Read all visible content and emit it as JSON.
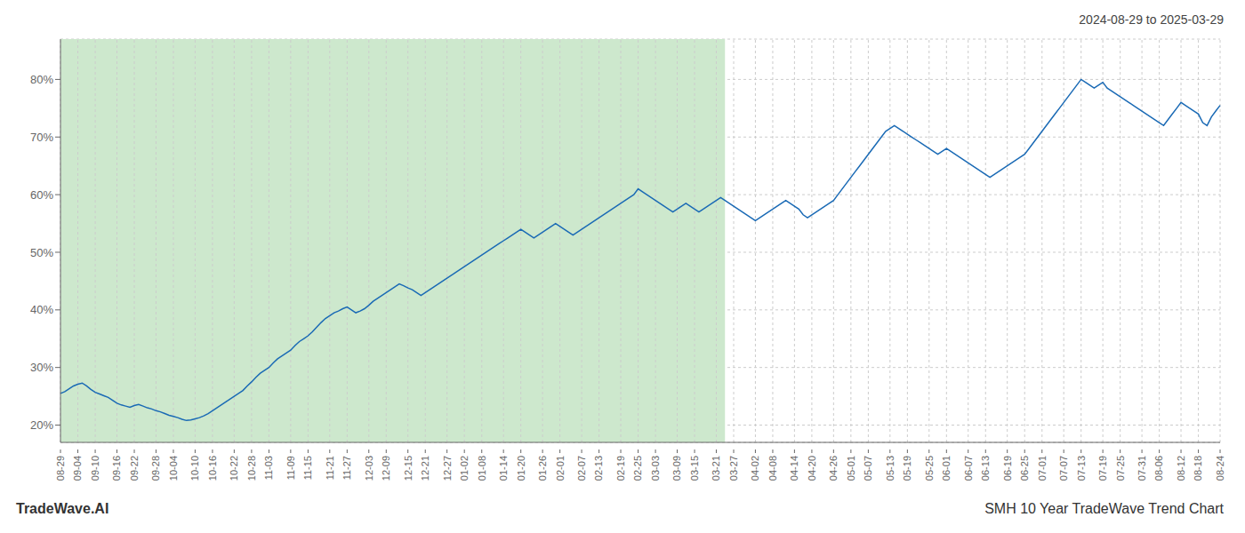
{
  "chart_data": {
    "type": "line",
    "title": "SMH 10 Year TradeWave Trend Chart",
    "subtitle": "2024-08-29 to 2025-03-29",
    "annotations": [
      "TradeWave.AI"
    ],
    "color": "#1a6ab5",
    "grid": true,
    "ylim": [
      17,
      87
    ],
    "yticks": [
      {
        "value": 20,
        "label": "20%"
      },
      {
        "value": 30,
        "label": "30%"
      },
      {
        "value": 40,
        "label": "40%"
      },
      {
        "value": 50,
        "label": "50%"
      },
      {
        "value": 60,
        "label": "60%"
      },
      {
        "value": 70,
        "label": "70%"
      },
      {
        "value": 80,
        "label": "80%"
      }
    ],
    "shaded_range": {
      "start": 0,
      "end": 153,
      "color": "#cde8cd"
    },
    "categories": [
      "08-29",
      null,
      null,
      null,
      "09-04",
      null,
      null,
      null,
      "09-10",
      null,
      null,
      null,
      null,
      "09-16",
      null,
      null,
      null,
      "09-22",
      null,
      null,
      null,
      null,
      "09-28",
      null,
      null,
      null,
      "10-04",
      null,
      null,
      null,
      null,
      "10-10",
      null,
      null,
      null,
      "10-16",
      null,
      null,
      null,
      null,
      "10-22",
      null,
      null,
      null,
      "10-28",
      null,
      null,
      null,
      "11-03",
      null,
      null,
      null,
      null,
      "11-09",
      null,
      null,
      null,
      "11-15",
      null,
      null,
      null,
      null,
      "11-21",
      null,
      null,
      null,
      "11-27",
      null,
      null,
      null,
      null,
      "12-03",
      null,
      null,
      null,
      "12-09",
      null,
      null,
      null,
      null,
      "12-15",
      null,
      null,
      null,
      "12-21",
      null,
      null,
      null,
      null,
      "12-27",
      null,
      null,
      null,
      "01-02",
      null,
      null,
      null,
      "01-08",
      null,
      null,
      null,
      null,
      "01-14",
      null,
      null,
      null,
      "01-20",
      null,
      null,
      null,
      null,
      "01-26",
      null,
      null,
      null,
      "02-01",
      null,
      null,
      null,
      null,
      "02-07",
      null,
      null,
      null,
      "02-13",
      null,
      null,
      null,
      null,
      "02-19",
      null,
      null,
      null,
      "02-25",
      null,
      null,
      null,
      "03-03",
      null,
      null,
      null,
      null,
      "03-09",
      null,
      null,
      null,
      "03-15",
      null,
      null,
      null,
      null,
      "03-21",
      null,
      null,
      null,
      "03-27",
      null,
      null,
      null,
      null,
      "04-02",
      null,
      null,
      null,
      "04-08",
      null,
      null,
      null,
      null,
      "04-14",
      null,
      null,
      null,
      "04-20",
      null,
      null,
      null,
      null,
      "04-26",
      null,
      null,
      null,
      "05-01",
      null,
      null,
      null,
      "05-07",
      null,
      null,
      null,
      null,
      "05-13",
      null,
      null,
      null,
      "05-19",
      null,
      null,
      null,
      null,
      "05-25",
      null,
      null,
      null,
      "06-01",
      null,
      null,
      null,
      null,
      "06-07",
      null,
      null,
      null,
      "06-13",
      null,
      null,
      null,
      null,
      "06-19",
      null,
      null,
      null,
      "06-25",
      null,
      null,
      null,
      "07-01",
      null,
      null,
      null,
      null,
      "07-07",
      null,
      null,
      null,
      "07-13",
      null,
      null,
      null,
      null,
      "07-19",
      null,
      null,
      null,
      "07-25",
      null,
      null,
      null,
      null,
      "07-31",
      null,
      null,
      null,
      "08-06",
      null,
      null,
      null,
      null,
      "08-12",
      null,
      null,
      null,
      "08-18",
      null,
      null,
      null,
      null,
      "08-24"
    ],
    "values": [
      25.5,
      25.8,
      26.3,
      26.8,
      27.1,
      27.3,
      26.8,
      26.2,
      25.7,
      25.4,
      25.1,
      24.8,
      24.3,
      23.8,
      23.5,
      23.3,
      23.1,
      23.4,
      23.6,
      23.3,
      23.0,
      22.8,
      22.5,
      22.3,
      22.0,
      21.7,
      21.5,
      21.3,
      21.0,
      20.8,
      20.9,
      21.1,
      21.3,
      21.6,
      22.0,
      22.5,
      23.0,
      23.5,
      24.0,
      24.5,
      25.0,
      25.5,
      26.0,
      26.8,
      27.5,
      28.3,
      29.0,
      29.5,
      30.0,
      30.8,
      31.5,
      32.0,
      32.5,
      33.0,
      33.8,
      34.5,
      35.0,
      35.5,
      36.2,
      37.0,
      37.8,
      38.5,
      39.0,
      39.5,
      39.8,
      40.2,
      40.5,
      40.0,
      39.5,
      39.8,
      40.2,
      40.8,
      41.5,
      42.0,
      42.5,
      43.0,
      43.5,
      44.0,
      44.5,
      44.2,
      43.8,
      43.5,
      43.0,
      42.5,
      43.0,
      43.5,
      44.0,
      44.5,
      45.0,
      45.5,
      46.0,
      46.5,
      47.0,
      47.5,
      48.0,
      48.5,
      49.0,
      49.5,
      50.0,
      50.5,
      51.0,
      51.5,
      52.0,
      52.5,
      53.0,
      53.5,
      54.0,
      53.5,
      53.0,
      52.5,
      53.0,
      53.5,
      54.0,
      54.5,
      55.0,
      54.5,
      54.0,
      53.5,
      53.0,
      53.5,
      54.0,
      54.5,
      55.0,
      55.5,
      56.0,
      56.5,
      57.0,
      57.5,
      58.0,
      58.5,
      59.0,
      59.5,
      60.0,
      61.0,
      60.5,
      60.0,
      59.5,
      59.0,
      58.5,
      58.0,
      57.5,
      57.0,
      57.5,
      58.0,
      58.5,
      58.0,
      57.5,
      57.0,
      57.5,
      58.0,
      58.5,
      59.0,
      59.5,
      59.0,
      58.5,
      58.0,
      57.5,
      57.0,
      56.5,
      56.0,
      55.5,
      56.0,
      56.5,
      57.0,
      57.5,
      58.0,
      58.5,
      59.0,
      58.5,
      58.0,
      57.5,
      56.5,
      56.0,
      56.5,
      57.0,
      57.5,
      58.0,
      58.5,
      59.0,
      60.0,
      61.0,
      62.0,
      63.0,
      64.0,
      65.0,
      66.0,
      67.0,
      68.0,
      69.0,
      70.0,
      71.0,
      71.5,
      72.0,
      71.5,
      71.0,
      70.5,
      70.0,
      69.5,
      69.0,
      68.5,
      68.0,
      67.5,
      67.0,
      67.5,
      68.0,
      67.5,
      67.0,
      66.5,
      66.0,
      65.5,
      65.0,
      64.5,
      64.0,
      63.5,
      63.0,
      63.5,
      64.0,
      64.5,
      65.0,
      65.5,
      66.0,
      66.5,
      67.0,
      68.0,
      69.0,
      70.0,
      71.0,
      72.0,
      73.0,
      74.0,
      75.0,
      76.0,
      77.0,
      78.0,
      79.0,
      80.0,
      79.5,
      79.0,
      78.5,
      79.0,
      79.5,
      78.5,
      78.0,
      77.5,
      77.0,
      76.5,
      76.0,
      75.5,
      75.0,
      74.5,
      74.0,
      73.5,
      73.0,
      72.5,
      72.0,
      73.0,
      74.0,
      75.0,
      76.0,
      75.5,
      75.0,
      74.5,
      74.0,
      72.5,
      72.0,
      73.5,
      74.5,
      75.5
    ]
  }
}
